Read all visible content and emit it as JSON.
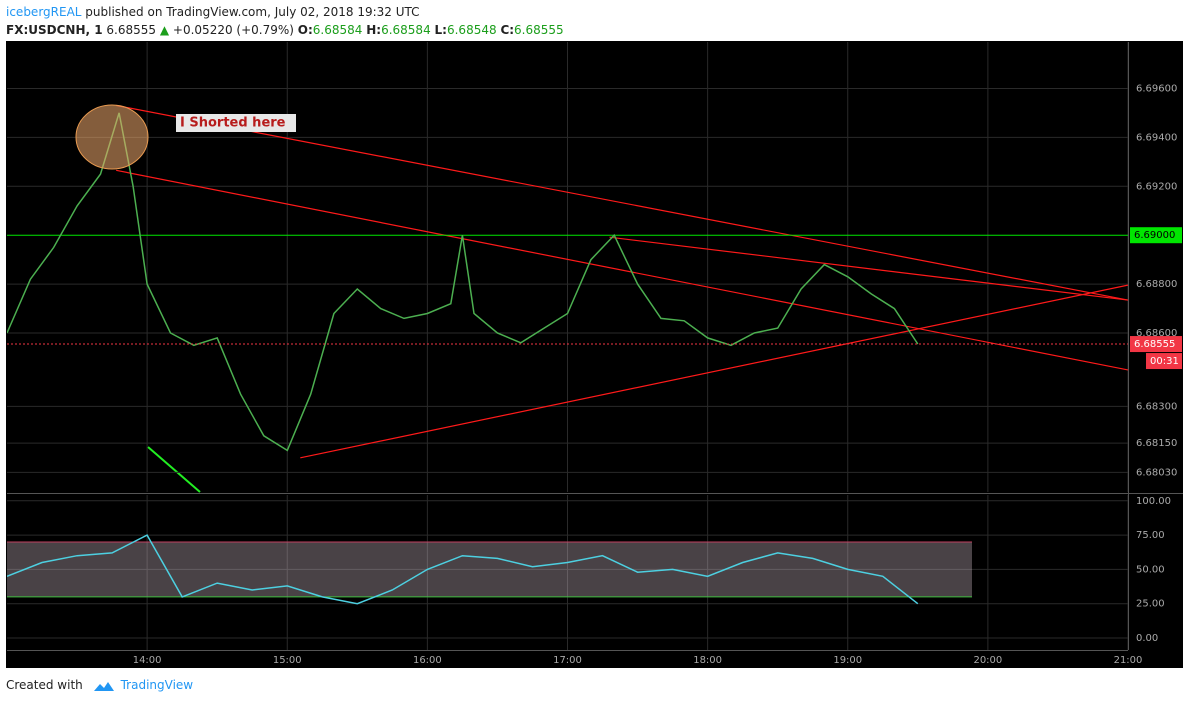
{
  "header": {
    "author": "icebergREAL",
    "published": "published on TradingView.com, July 02, 2018 19:32 UTC"
  },
  "symbol_line": {
    "symbol": "FX:USDCNH, 1",
    "last": "6.68555",
    "change": "+0.05220 (+0.79%)",
    "o_label": "O:",
    "o": "6.68584",
    "h_label": "H:",
    "h": "6.68584",
    "l_label": "L:",
    "l": "6.68548",
    "c_label": "C:",
    "c": "6.68555"
  },
  "chart_data": [
    {
      "type": "line",
      "color": "#4caf50",
      "annotation": "I Shorted here",
      "x": [
        13,
        13.167,
        13.333,
        13.5,
        13.667,
        13.8,
        13.9,
        14,
        14.167,
        14.333,
        14.5,
        14.667,
        14.833,
        15,
        15.167,
        15.333,
        15.5,
        15.667,
        15.833,
        16,
        16.167,
        16.25,
        16.333,
        16.5,
        16.667,
        16.833,
        17,
        17.167,
        17.333,
        17.5,
        17.667,
        17.833,
        18,
        18.167,
        18.333,
        18.5,
        18.667,
        18.833,
        19,
        19.167,
        19.333,
        19.5
      ],
      "values": [
        6.686,
        6.6882,
        6.6895,
        6.6912,
        6.6925,
        6.695,
        6.692,
        6.688,
        6.686,
        6.6855,
        6.6858,
        6.6835,
        6.6818,
        6.6812,
        6.6835,
        6.6868,
        6.6878,
        6.687,
        6.6866,
        6.6868,
        6.6872,
        6.69,
        6.6868,
        6.686,
        6.6856,
        6.6862,
        6.6868,
        6.689,
        6.69,
        6.688,
        6.6866,
        6.6865,
        6.6858,
        6.6855,
        6.686,
        6.6862,
        6.6878,
        6.6888,
        6.6883,
        6.6876,
        6.687,
        6.68555
      ],
      "xlim": [
        13,
        21
      ],
      "ylim": [
        6.6795,
        6.6979
      ],
      "yticks": [
        {
          "value": 6.6803,
          "label": "6.68030"
        },
        {
          "value": 6.6815,
          "label": "6.68150"
        },
        {
          "value": 6.683,
          "label": "6.68300"
        },
        {
          "value": 6.686,
          "label": "6.68600"
        },
        {
          "value": 6.688,
          "label": "6.68800"
        },
        {
          "value": 6.692,
          "label": "6.69200"
        },
        {
          "value": 6.694,
          "label": "6.69400"
        },
        {
          "value": 6.696,
          "label": "6.69600"
        }
      ],
      "xticks": [
        {
          "value": 14,
          "label": "14:00"
        },
        {
          "value": 15,
          "label": "15:00"
        },
        {
          "value": 16,
          "label": "16:00"
        },
        {
          "value": 17,
          "label": "17:00"
        },
        {
          "value": 18,
          "label": "18:00"
        },
        {
          "value": 19,
          "label": "19:00"
        },
        {
          "value": 20,
          "label": "20:00"
        },
        {
          "value": 21,
          "label": "21:00"
        }
      ],
      "level_line": {
        "value": 6.69,
        "label": "6.69000",
        "color": "#00e600"
      },
      "last_price": {
        "value": 6.68555,
        "label": "6.68555",
        "color": "#f23645"
      },
      "countdown": "00:31",
      "trendlines": [
        {
          "color": "#ff1a1a",
          "x": [
            13.779,
            21
          ],
          "values": [
            6.695306,
            6.687347
          ]
        },
        {
          "color": "#ff1a1a",
          "x": [
            13.779,
            21
          ],
          "values": [
            6.692653,
            6.68449
          ]
        },
        {
          "color": "#ff1a1a",
          "x": [
            15.093,
            21
          ],
          "values": [
            6.680898,
            6.687959
          ]
        },
        {
          "color": "#ff1a1a",
          "x": [
            17.3,
            21
          ],
          "values": [
            6.689918,
            6.687347
          ]
        }
      ]
    },
    {
      "type": "line",
      "color": "#4dd0e1",
      "x": [
        13,
        13.25,
        13.5,
        13.75,
        14,
        14.25,
        14.5,
        14.75,
        15,
        15.25,
        15.5,
        15.75,
        16,
        16.25,
        16.5,
        16.75,
        17,
        17.25,
        17.5,
        17.75,
        18,
        18.25,
        18.5,
        18.75,
        19,
        19.25,
        19.5
      ],
      "values": [
        45,
        55,
        60,
        62,
        75,
        30,
        40,
        35,
        38,
        30,
        25,
        35,
        50,
        60,
        58,
        52,
        55,
        60,
        48,
        50,
        45,
        55,
        62,
        58,
        50,
        45,
        25
      ],
      "xlim": [
        13,
        21
      ],
      "ylim": [
        -8.7,
        104.2
      ],
      "yticks": [
        {
          "value": 0,
          "label": "0.00"
        },
        {
          "value": 25,
          "label": "25.00"
        },
        {
          "value": 50,
          "label": "50.00"
        },
        {
          "value": 75,
          "label": "75.00"
        },
        {
          "value": 100,
          "label": "100.00"
        }
      ],
      "band": [
        30,
        70
      ]
    }
  ],
  "footer": {
    "created": "Created with",
    "brand": "TradingView"
  }
}
